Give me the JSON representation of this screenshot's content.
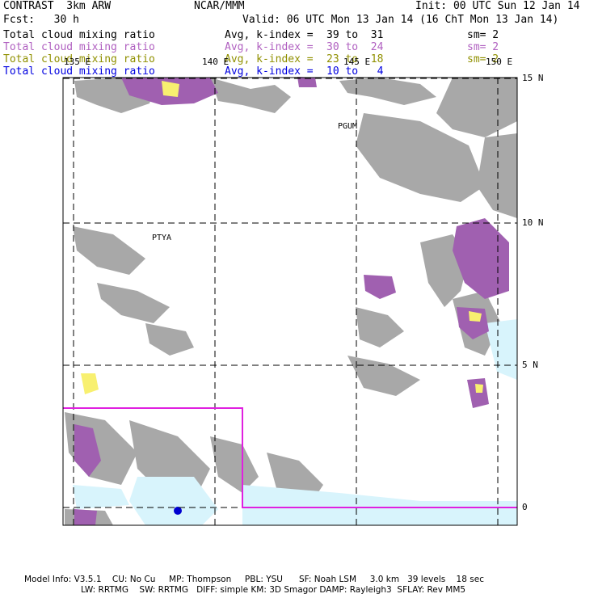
{
  "header": {
    "model": "CONTRAST  3km ARW",
    "org": "NCAR/MMM",
    "init": "Init: 00 UTC Sun 12 Jan 14",
    "fcst": "Fcst:   30 h",
    "valid": "Valid: 06 UTC Mon 13 Jan 14 (16 ChT Mon 13 Jan 14)"
  },
  "fields": [
    {
      "name": "Total cloud mixing ratio",
      "avg": "Avg, k-index =",
      "range": "39 to  31",
      "sm": "sm= 2",
      "color": "#000000"
    },
    {
      "name": "Total cloud mixing ratio",
      "avg": "Avg, k-index =",
      "range": "30 to  24",
      "sm": "sm= 2",
      "color": "#b060c0"
    },
    {
      "name": "Total cloud mixing ratio",
      "avg": "Avg, k-index =",
      "range": "23 to  18",
      "sm": "sm= 2",
      "color": "#909000"
    },
    {
      "name": "Total cloud mixing ratio",
      "avg": "Avg, k-index =",
      "range": "10 to   4",
      "sm": "",
      "color": "#0000e0"
    }
  ],
  "lon_labels": [
    "135 E",
    "140 E",
    "145 E",
    "150 E"
  ],
  "lat_labels": [
    "15 N",
    "10 N",
    "5 N",
    "0"
  ],
  "stations": [
    "PGUM",
    "PTYA"
  ],
  "footer": {
    "line1": "Model Info: V3.5.1    CU: No Cu     MP: Thompson     PBL: YSU      SF: Noah LSM     3.0 km   39 levels    18 sec",
    "line2": "LW: RRTMG    SW: RRTMG   DIFF: simple KM: 3D Smagor DAMP: Rayleigh3  SFLAY: Rev MM5"
  },
  "colors": {
    "cloud_gray": "#a8a8a8",
    "cloud_purple": "#a060b0",
    "cloud_yellow": "#f8f070",
    "cloud_lightblue": "#d8f4fc",
    "cloud_blue": "#0000d0",
    "box": "#e020e0"
  }
}
